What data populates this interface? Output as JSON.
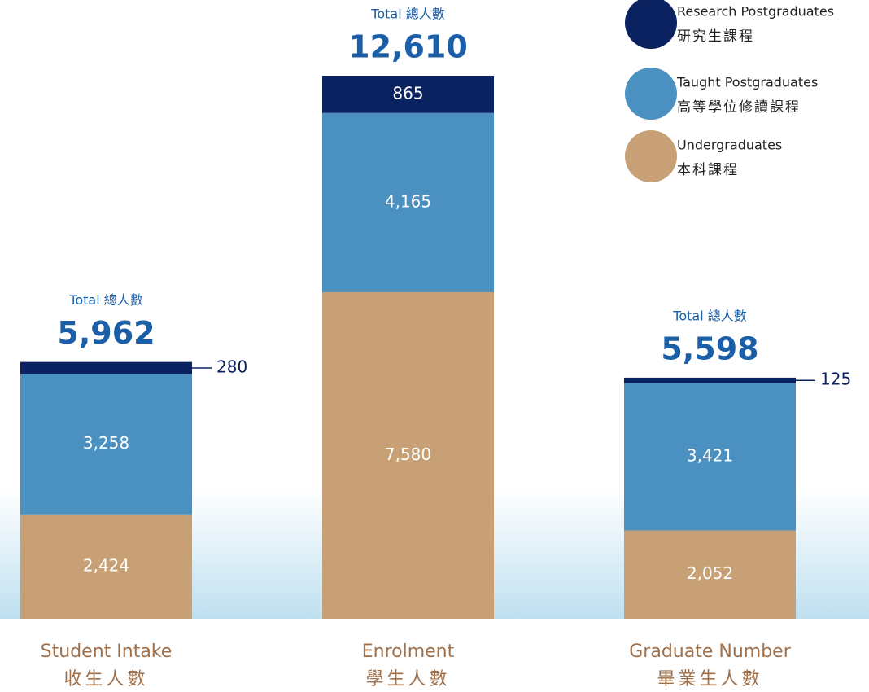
{
  "chart_data": {
    "type": "stacked_bar",
    "categories": [
      "Student Intake",
      "Enrolment",
      "Graduate Number"
    ],
    "categories_secondary": [
      "收生人數",
      "學生人數",
      "畢業生人數"
    ],
    "total_label": "Total 總人數",
    "totals": [
      5962,
      12610,
      5598
    ],
    "totals_labels": [
      "5,962",
      "12,610",
      "5,598"
    ],
    "series": [
      {
        "name": "Undergraduates",
        "name_secondary": "本科課程",
        "color": "#c8a075",
        "values": [
          2424,
          7580,
          2052
        ],
        "value_labels": [
          "2,424",
          "7,580",
          "2,052"
        ]
      },
      {
        "name": "Taught Postgraduates",
        "name_secondary": "高等學位修讀課程",
        "color": "#4a90c0",
        "values": [
          3258,
          4165,
          3421
        ],
        "value_labels": [
          "3,258",
          "4,165",
          "3,421"
        ]
      },
      {
        "name": "Research Postgraduates",
        "name_secondary": "研究生課程",
        "color": "#0b2260",
        "values": [
          280,
          865,
          125
        ],
        "value_labels": [
          "280",
          "865",
          "125"
        ]
      }
    ]
  }
}
